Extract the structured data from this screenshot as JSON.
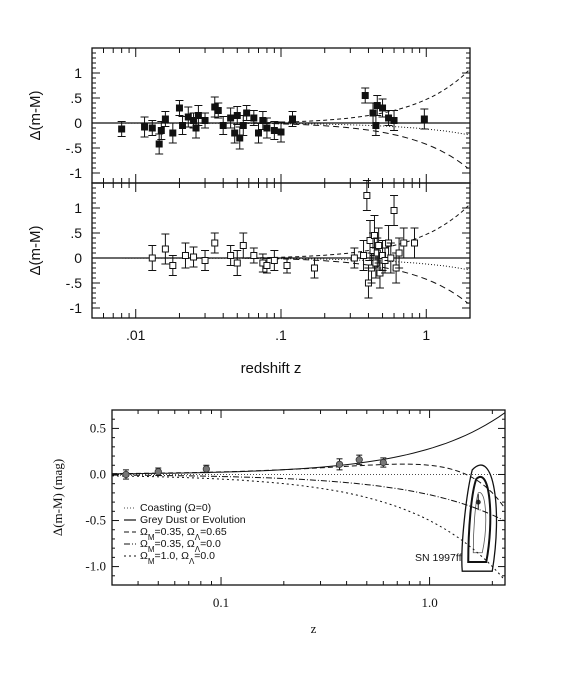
{
  "chart_data": [
    {
      "type": "scatter",
      "panel": "top",
      "ylabel": "Δ(m-M)",
      "xlabel": "",
      "xscale": "log",
      "xlim": [
        0.005,
        2
      ],
      "ylim": [
        -1.2,
        1.5
      ],
      "ytick_labels": [
        "1",
        ".5",
        "0",
        "-.5",
        "-1"
      ],
      "yticks": [
        1,
        0.5,
        0,
        -0.5,
        -1
      ],
      "marker": "filled-square",
      "points": [
        {
          "x": 0.008,
          "y": -0.12,
          "e": 0.15
        },
        {
          "x": 0.0115,
          "y": -0.08,
          "e": 0.2
        },
        {
          "x": 0.013,
          "y": -0.1,
          "e": 0.15
        },
        {
          "x": 0.0145,
          "y": -0.42,
          "e": 0.2
        },
        {
          "x": 0.015,
          "y": -0.15,
          "e": 0.18
        },
        {
          "x": 0.016,
          "y": 0.08,
          "e": 0.15
        },
        {
          "x": 0.018,
          "y": -0.2,
          "e": 0.2
        },
        {
          "x": 0.02,
          "y": 0.3,
          "e": 0.15
        },
        {
          "x": 0.021,
          "y": -0.05,
          "e": 0.18
        },
        {
          "x": 0.023,
          "y": 0.12,
          "e": 0.2
        },
        {
          "x": 0.025,
          "y": 0.05,
          "e": 0.15
        },
        {
          "x": 0.026,
          "y": -0.1,
          "e": 0.2
        },
        {
          "x": 0.027,
          "y": 0.15,
          "e": 0.2
        },
        {
          "x": 0.03,
          "y": 0.05,
          "e": 0.15
        },
        {
          "x": 0.035,
          "y": 0.32,
          "e": 0.2
        },
        {
          "x": 0.037,
          "y": 0.25,
          "e": 0.15
        },
        {
          "x": 0.04,
          "y": -0.05,
          "e": 0.18
        },
        {
          "x": 0.045,
          "y": 0.1,
          "e": 0.2
        },
        {
          "x": 0.048,
          "y": -0.2,
          "e": 0.2
        },
        {
          "x": 0.05,
          "y": 0.15,
          "e": 0.18
        },
        {
          "x": 0.052,
          "y": -0.3,
          "e": 0.22
        },
        {
          "x": 0.055,
          "y": -0.05,
          "e": 0.2
        },
        {
          "x": 0.058,
          "y": 0.2,
          "e": 0.15
        },
        {
          "x": 0.065,
          "y": 0.1,
          "e": 0.15
        },
        {
          "x": 0.07,
          "y": -0.2,
          "e": 0.2
        },
        {
          "x": 0.075,
          "y": 0.05,
          "e": 0.18
        },
        {
          "x": 0.08,
          "y": -0.1,
          "e": 0.2
        },
        {
          "x": 0.09,
          "y": -0.15,
          "e": 0.18
        },
        {
          "x": 0.1,
          "y": -0.18,
          "e": 0.2
        },
        {
          "x": 0.12,
          "y": 0.08,
          "e": 0.15
        },
        {
          "x": 0.38,
          "y": 0.55,
          "e": 0.15
        },
        {
          "x": 0.43,
          "y": 0.2,
          "e": 0.2
        },
        {
          "x": 0.46,
          "y": 0.35,
          "e": 0.2
        },
        {
          "x": 0.5,
          "y": 0.3,
          "e": 0.18
        },
        {
          "x": 0.45,
          "y": -0.05,
          "e": 0.2
        },
        {
          "x": 0.55,
          "y": 0.1,
          "e": 0.15
        },
        {
          "x": 0.6,
          "y": 0.05,
          "e": 0.2
        },
        {
          "x": 0.97,
          "y": 0.08,
          "e": 0.2
        }
      ]
    },
    {
      "type": "scatter",
      "panel": "middle",
      "ylabel": "Δ(m-M)",
      "xlabel": "redshift z",
      "xscale": "log",
      "xlim": [
        0.005,
        2
      ],
      "ylim": [
        -1.2,
        1.5
      ],
      "ytick_labels": [
        "1",
        ".5",
        "0",
        "-.5",
        "-1"
      ],
      "yticks": [
        1,
        0.5,
        0,
        -0.5,
        -1
      ],
      "xtick_labels": [
        ".01",
        ".1",
        "1"
      ],
      "xticks": [
        0.01,
        0.1,
        1
      ],
      "marker": "open-square",
      "points": [
        {
          "x": 0.013,
          "y": 0.0,
          "e": 0.25
        },
        {
          "x": 0.016,
          "y": 0.18,
          "e": 0.3
        },
        {
          "x": 0.018,
          "y": -0.15,
          "e": 0.2
        },
        {
          "x": 0.022,
          "y": 0.05,
          "e": 0.25
        },
        {
          "x": 0.025,
          "y": 0.02,
          "e": 0.2
        },
        {
          "x": 0.03,
          "y": -0.05,
          "e": 0.2
        },
        {
          "x": 0.035,
          "y": 0.3,
          "e": 0.2
        },
        {
          "x": 0.045,
          "y": 0.05,
          "e": 0.2
        },
        {
          "x": 0.05,
          "y": -0.1,
          "e": 0.25
        },
        {
          "x": 0.055,
          "y": 0.25,
          "e": 0.25
        },
        {
          "x": 0.065,
          "y": 0.05,
          "e": 0.15
        },
        {
          "x": 0.075,
          "y": -0.1,
          "e": 0.18
        },
        {
          "x": 0.08,
          "y": -0.15,
          "e": 0.15
        },
        {
          "x": 0.09,
          "y": -0.05,
          "e": 0.2
        },
        {
          "x": 0.11,
          "y": -0.15,
          "e": 0.15
        },
        {
          "x": 0.17,
          "y": -0.2,
          "e": 0.2
        },
        {
          "x": 0.32,
          "y": 0.0,
          "e": 0.2
        },
        {
          "x": 0.37,
          "y": 0.05,
          "e": 0.3
        },
        {
          "x": 0.39,
          "y": 1.25,
          "e": 0.3
        },
        {
          "x": 0.4,
          "y": -0.5,
          "e": 0.3
        },
        {
          "x": 0.41,
          "y": 0.35,
          "e": 0.4
        },
        {
          "x": 0.42,
          "y": -0.2,
          "e": 0.3
        },
        {
          "x": 0.43,
          "y": 0.15,
          "e": 0.35
        },
        {
          "x": 0.44,
          "y": 0.45,
          "e": 0.4
        },
        {
          "x": 0.45,
          "y": -0.1,
          "e": 0.3
        },
        {
          "x": 0.46,
          "y": 0.1,
          "e": 0.3
        },
        {
          "x": 0.47,
          "y": 0.25,
          "e": 0.35
        },
        {
          "x": 0.48,
          "y": -0.3,
          "e": 0.3
        },
        {
          "x": 0.5,
          "y": 0.05,
          "e": 0.3
        },
        {
          "x": 0.52,
          "y": -0.05,
          "e": 0.25
        },
        {
          "x": 0.55,
          "y": 0.3,
          "e": 0.35
        },
        {
          "x": 0.57,
          "y": 0.0,
          "e": 0.3
        },
        {
          "x": 0.6,
          "y": 0.95,
          "e": 0.3
        },
        {
          "x": 0.62,
          "y": -0.2,
          "e": 0.3
        },
        {
          "x": 0.65,
          "y": 0.1,
          "e": 0.3
        },
        {
          "x": 0.7,
          "y": 0.3,
          "e": 0.3
        },
        {
          "x": 0.83,
          "y": 0.3,
          "e": 0.3
        }
      ]
    },
    {
      "type": "line",
      "panel": "bottom",
      "ylabel": "Δ(m-M) (mag)",
      "xlabel": "z",
      "xscale": "log",
      "xlim": [
        0.03,
        2.3
      ],
      "ylim": [
        -1.2,
        0.7
      ],
      "ytick_labels": [
        "0.5",
        "0.0",
        "-0.5",
        "-1.0"
      ],
      "yticks": [
        0.5,
        0,
        -0.5,
        -1.0
      ],
      "xtick_labels": [
        "0.1",
        "1.0"
      ],
      "xticks": [
        0.1,
        1.0
      ],
      "legend": [
        "Coasting (Ω=0)",
        "Grey Dust or Evolution",
        "ΩM=0.35, ΩΛ=0.65",
        "ΩM=0.35, ΩΛ=0.0",
        "ΩM=1.0, ΩΛ=0.0"
      ],
      "annotation": "SN 1997ff",
      "points": [
        {
          "x": 0.035,
          "y": 0.0,
          "e": 0.05
        },
        {
          "x": 0.05,
          "y": 0.03,
          "e": 0.04
        },
        {
          "x": 0.085,
          "y": 0.06,
          "e": 0.04
        },
        {
          "x": 0.37,
          "y": 0.11,
          "e": 0.06
        },
        {
          "x": 0.46,
          "y": 0.16,
          "e": 0.05
        },
        {
          "x": 0.6,
          "y": 0.13,
          "e": 0.05
        }
      ],
      "highlight_point": {
        "x": 1.75,
        "y": -0.3
      }
    }
  ]
}
